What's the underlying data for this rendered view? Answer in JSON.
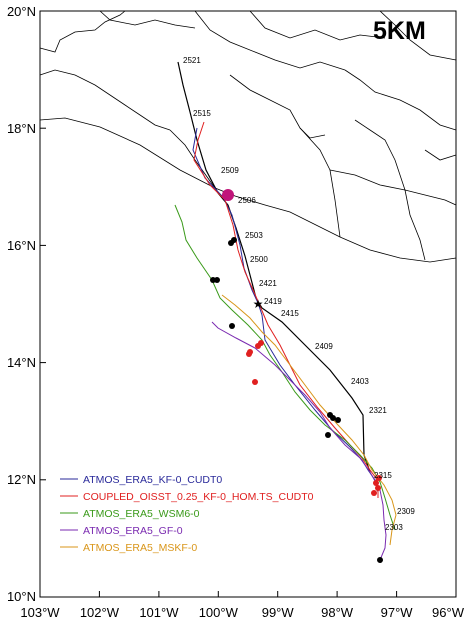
{
  "title": "5KM",
  "axes": {
    "lon_labels": [
      "103°W",
      "102°W",
      "101°W",
      "100°W",
      "99°W",
      "98°W",
      "97°W",
      "96°W"
    ],
    "lat_labels": [
      "20°N",
      "18°N",
      "16°N",
      "14°N",
      "12°N",
      "10°N"
    ],
    "lon_range": [
      -103,
      -96
    ],
    "lat_range": [
      10,
      20
    ]
  },
  "track_labels": [
    "2521",
    "2515",
    "2509",
    "2506",
    "2503",
    "2500",
    "2421",
    "2419",
    "2415",
    "2409",
    "2403",
    "2321",
    "2315",
    "2309",
    "2303"
  ],
  "legend": [
    {
      "label": "ATMOS_ERA5_KF-0_CUDT0",
      "color": "#2a2a9a"
    },
    {
      "label": "COUPLED_OISST_0.25_KF-0_HOM.TS_CUDT0",
      "color": "#e02020"
    },
    {
      "label": "ATMOS_ERA5_WSM6-0",
      "color": "#3a9a1a"
    },
    {
      "label": "ATMOS_ERA5_GF-0",
      "color": "#7a2ab0"
    },
    {
      "label": "ATMOS_ERA5_MSKF-0",
      "color": "#d9961a"
    }
  ],
  "colors": {
    "observed_track": "#000000",
    "coastline": "#000000",
    "landfall_marker": "#c0157a"
  }
}
